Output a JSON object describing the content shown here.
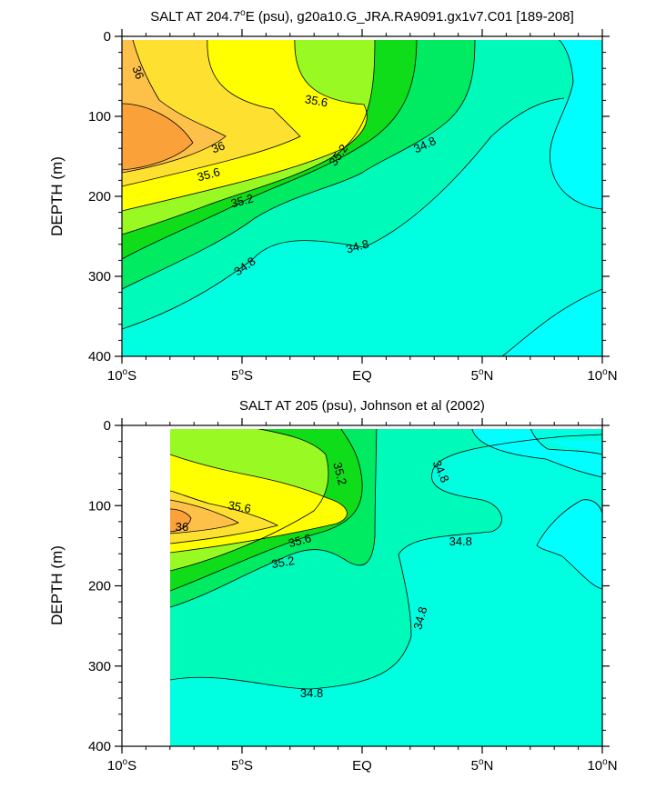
{
  "colors": {
    "lt_34_6": "#00ffff",
    "b34_6_34_8": "#00ffe0",
    "b34_8_35_0": "#00faba",
    "b35_0_35_2": "#00ea62",
    "b35_2_35_4": "#0fdd1a",
    "b35_4_35_6": "#98f923",
    "b35_6_35_8": "#ffff00",
    "b35_8_36_0": "#fee030",
    "b36_0_36_2": "#fdc14a",
    "gt_36_2": "#fba13a"
  },
  "chart_data": [
    {
      "type": "contour",
      "title": "SALT AT 204.7°E (psu), g20a10.G_JRA.RA9091.gx1v7.C01 [189-208]",
      "title_parts": {
        "pre": "SALT AT 204.7",
        "sup": "o",
        "post": "E (psu), g20a10.G_JRA.RA9091.gx1v7.C01 [189-208]"
      },
      "ylabel": "DEPTH (m)",
      "xlim": [
        -10,
        10
      ],
      "ylim": [
        0,
        400
      ],
      "y_inverted": true,
      "contour_levels": [
        34.6,
        34.8,
        35.0,
        35.2,
        35.4,
        35.6,
        35.8,
        36.0,
        36.2
      ],
      "x_ticks": [
        {
          "value": -10,
          "num": "10",
          "deg": "o",
          "dir": "S"
        },
        {
          "value": -5,
          "num": "5",
          "deg": "o",
          "dir": "S"
        },
        {
          "value": 0,
          "num": "EQ",
          "deg": "",
          "dir": ""
        },
        {
          "value": 5,
          "num": "5",
          "deg": "o",
          "dir": "N"
        },
        {
          "value": 10,
          "num": "10",
          "deg": "o",
          "dir": "N"
        }
      ],
      "y_ticks": [
        "0",
        "100",
        "200",
        "300",
        "400"
      ],
      "y_tick_values": [
        0,
        100,
        200,
        300,
        400
      ],
      "contour_labels": [
        {
          "text": "36",
          "lat": -9.3,
          "depth": 45,
          "angle": 70
        },
        {
          "text": "35.6",
          "lat": -1.9,
          "depth": 80,
          "angle": 10
        },
        {
          "text": "36",
          "lat": -6.0,
          "depth": 138,
          "angle": -20
        },
        {
          "text": "35.2",
          "lat": -1.0,
          "depth": 148,
          "angle": -55
        },
        {
          "text": "34.8",
          "lat": 2.6,
          "depth": 135,
          "angle": -25
        },
        {
          "text": "35.6",
          "lat": -6.4,
          "depth": 172,
          "angle": -15
        },
        {
          "text": "35.2",
          "lat": -5.0,
          "depth": 205,
          "angle": -15
        },
        {
          "text": "34.8",
          "lat": -0.2,
          "depth": 262,
          "angle": -15
        },
        {
          "text": "34.8",
          "lat": -4.9,
          "depth": 287,
          "angle": -35
        }
      ]
    },
    {
      "type": "contour",
      "title": "SALT AT 205 (psu), Johnson et al (2002)",
      "ylabel": "DEPTH (m)",
      "xlim": [
        -10,
        10
      ],
      "ylim": [
        0,
        400
      ],
      "y_inverted": true,
      "data_x_range": [
        -8,
        10
      ],
      "contour_levels": [
        34.6,
        34.8,
        35.0,
        35.2,
        35.4,
        35.6,
        35.8,
        36.0,
        36.2
      ],
      "x_ticks": [
        {
          "value": -10,
          "num": "10",
          "deg": "o",
          "dir": "S"
        },
        {
          "value": -5,
          "num": "5",
          "deg": "o",
          "dir": "S"
        },
        {
          "value": 0,
          "num": "EQ",
          "deg": "",
          "dir": ""
        },
        {
          "value": 5,
          "num": "5",
          "deg": "o",
          "dir": "N"
        },
        {
          "value": 10,
          "num": "10",
          "deg": "o",
          "dir": "N"
        }
      ],
      "y_ticks": [
        "0",
        "100",
        "200",
        "300",
        "400"
      ],
      "y_tick_values": [
        0,
        100,
        200,
        300,
        400
      ],
      "contour_labels": [
        {
          "text": "35.2",
          "lat": -0.9,
          "depth": 60,
          "angle": 75
        },
        {
          "text": "34.8",
          "lat": 3.3,
          "depth": 57,
          "angle": 65
        },
        {
          "text": "35.6",
          "lat": -5.1,
          "depth": 101,
          "angle": 10
        },
        {
          "text": "36",
          "lat": -7.5,
          "depth": 126,
          "angle": 0
        },
        {
          "text": "35.6",
          "lat": -2.6,
          "depth": 143,
          "angle": -15
        },
        {
          "text": "34.8",
          "lat": 4.1,
          "depth": 144,
          "angle": 0
        },
        {
          "text": "35.2",
          "lat": -3.3,
          "depth": 170,
          "angle": -10
        },
        {
          "text": "34.8",
          "lat": 2.4,
          "depth": 240,
          "angle": -75
        },
        {
          "text": "34.8",
          "lat": -2.1,
          "depth": 333,
          "angle": 0
        }
      ]
    }
  ]
}
